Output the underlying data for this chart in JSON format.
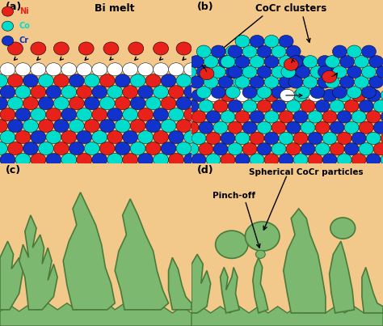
{
  "panel_bg": "#F2C98A",
  "ni_color": "#E8221A",
  "co_color": "#00DDCC",
  "cr_color": "#1133CC",
  "white_color": "#FFFFFF",
  "green_fill": "#7DB870",
  "green_edge": "#4A7A3A",
  "title_a": "Bi melt",
  "title_b": "CoCr clusters",
  "title_d": "Spherical CoCr particles",
  "label_pinchoff": "Pinch-off",
  "panel_labels": [
    "(a)",
    "(b)",
    "(c)",
    "(d)"
  ],
  "figsize": [
    4.74,
    4.03
  ],
  "dpi": 100
}
